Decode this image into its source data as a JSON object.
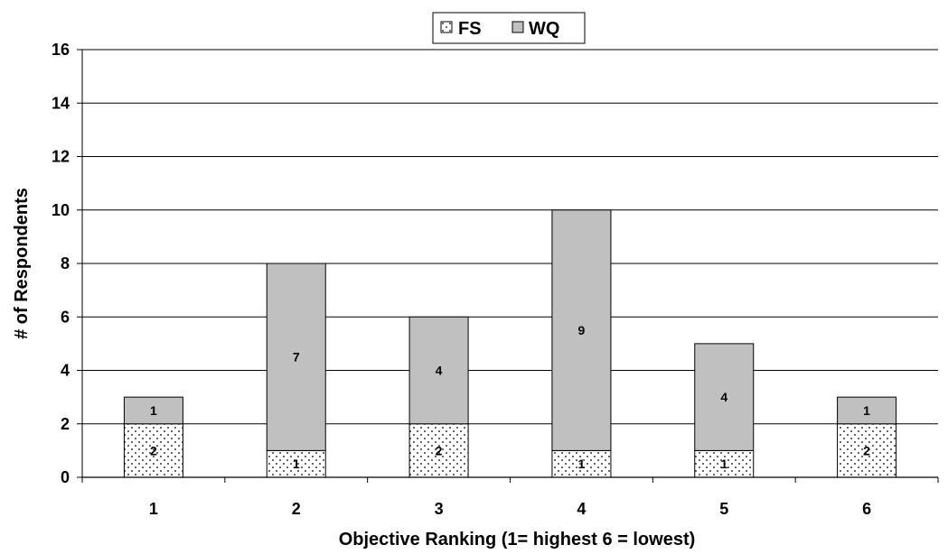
{
  "chart_data": {
    "type": "bar",
    "stacked": true,
    "categories": [
      "1",
      "2",
      "3",
      "4",
      "5",
      "6"
    ],
    "series": [
      {
        "name": "FS",
        "values": [
          2,
          1,
          2,
          1,
          1,
          2
        ],
        "color": "#ffffff",
        "pattern": "dotted"
      },
      {
        "name": "WQ",
        "values": [
          1,
          7,
          4,
          9,
          4,
          1
        ],
        "color": "#c0c0c0",
        "pattern": "solid"
      }
    ],
    "xlabel": "Objective Ranking (1= highest 6 = lowest)",
    "ylabel": "# of Respondents",
    "ylim": [
      0,
      16
    ],
    "yticks": [
      0,
      2,
      4,
      6,
      8,
      10,
      12,
      14,
      16
    ],
    "grid": true,
    "legend_position": "top-center"
  }
}
